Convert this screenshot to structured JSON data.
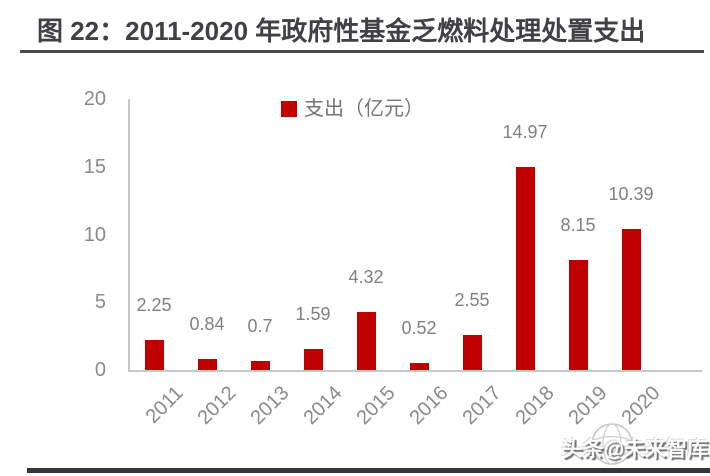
{
  "figure": {
    "title": "图 22：2011-2020 年政府性基金乏燃料处理处置支出",
    "watermark": "头条@未来智库"
  },
  "chart_data": {
    "type": "bar",
    "title": "2011-2020 年政府性基金乏燃料处理处置支出",
    "series_name": "支出（亿元）",
    "categories": [
      "2011",
      "2012",
      "2013",
      "2014",
      "2015",
      "2016",
      "2017",
      "2018",
      "2019",
      "2020"
    ],
    "values": [
      2.25,
      0.84,
      0.7,
      1.59,
      4.32,
      0.52,
      2.55,
      14.97,
      8.15,
      10.39
    ],
    "value_labels": [
      "2.25",
      "0.84",
      "0.7",
      "1.59",
      "4.32",
      "0.52",
      "2.55",
      "14.97",
      "8.15",
      "10.39"
    ],
    "xlabel": "",
    "ylabel": "",
    "ylim": [
      0,
      20
    ],
    "yticks": [
      0,
      5,
      10,
      15,
      20
    ],
    "grid": false,
    "legend_position": "top-center",
    "bar_color": "#C00000"
  },
  "icons": {
    "legend_marker": "red-square",
    "watermark_logo": "globe-icon"
  },
  "colors": {
    "bar": "#C00000",
    "title_text": "#404045",
    "axis_text": "#8A8A8A",
    "data_label_text": "#818181",
    "legend_text": "#757575",
    "axis_line": "#C8C8C8",
    "title_rule": "#4A4A4A",
    "bottom_bar": "#36363A",
    "background": "#FFFFFF"
  }
}
